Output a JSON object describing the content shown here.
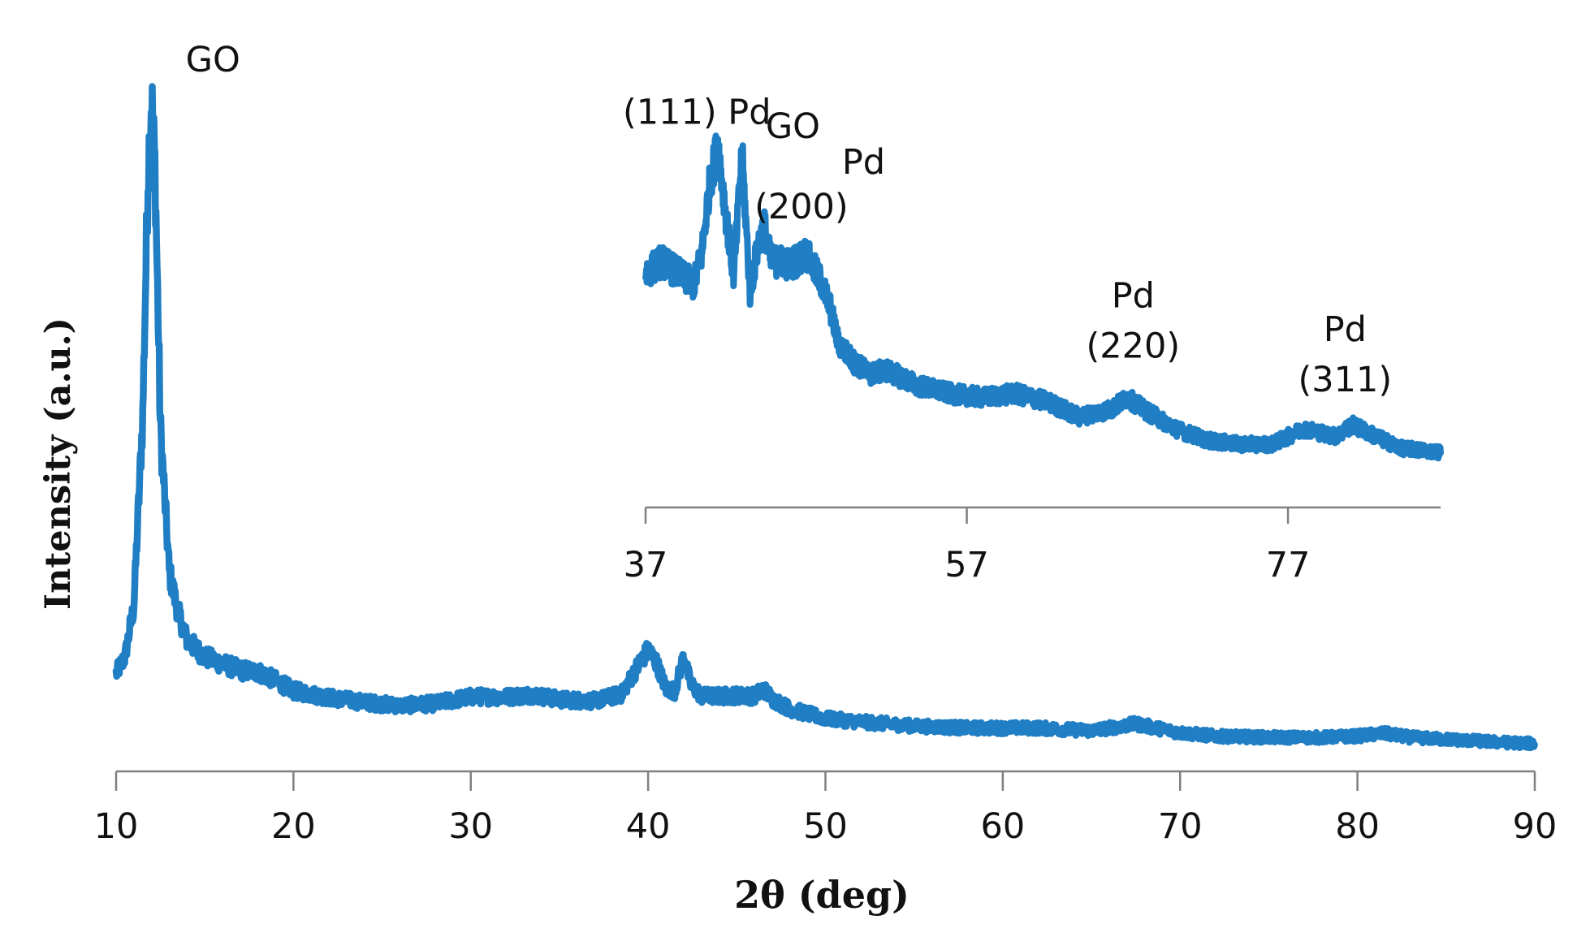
{
  "chart_data": [
    {
      "type": "line",
      "xlabel": "2θ (deg)",
      "ylabel": "Intensity (a.u.)",
      "xlim": [
        10,
        90
      ],
      "ylim": [
        0,
        100
      ],
      "xticks": [
        "10",
        "20",
        "30",
        "40",
        "50",
        "60",
        "70",
        "80",
        "90"
      ],
      "y_tick_labels": false,
      "grid": false,
      "legend": "none",
      "series": [
        {
          "color": "#1f7ec4",
          "x": [
            10,
            10.5,
            11,
            11.5,
            11.8,
            12,
            12.2,
            12.5,
            13,
            13.5,
            14,
            15,
            16,
            17,
            18,
            19,
            20,
            22,
            24,
            26,
            28,
            30,
            32,
            33.5,
            35,
            37,
            38.5,
            39.5,
            40,
            40.5,
            41,
            41.5,
            42,
            42.4,
            43,
            44,
            45,
            46,
            46.5,
            47,
            48,
            50,
            52,
            55,
            58,
            62,
            65,
            67.5,
            70,
            72,
            75,
            78,
            80,
            81.5,
            83,
            86,
            88,
            90
          ],
          "y": [
            12,
            14.5,
            22,
            50,
            86,
            97,
            86,
            48,
            27,
            21,
            17,
            14.5,
            13.5,
            12.5,
            12.3,
            11,
            9.5,
            8.5,
            7.8,
            7.3,
            7.6,
            8.6,
            8.6,
            8.9,
            8.2,
            8,
            9,
            13.5,
            15.5,
            13.5,
            9.8,
            9.5,
            14.5,
            10.5,
            8.7,
            8.7,
            8.8,
            8.7,
            9.8,
            8.3,
            6.8,
            5.4,
            4.9,
            4.3,
            4,
            4,
            3.6,
            4.6,
            3.3,
            2.8,
            2.6,
            2.6,
            2.8,
            3.2,
            2.6,
            2.2,
            1.9,
            1.7
          ]
        }
      ],
      "annotations": [
        {
          "text": "GO",
          "x": 12,
          "y": 97
        }
      ]
    },
    {
      "type": "line",
      "inset": true,
      "xlim": [
        37,
        86.5
      ],
      "ylim": [
        0,
        100
      ],
      "xticks": [
        "37",
        "57",
        "77"
      ],
      "y_tick_labels": false,
      "grid": false,
      "series": [
        {
          "color": "#1f7ec4",
          "x": [
            37,
            38,
            39,
            40,
            40.5,
            41,
            41.5,
            42,
            42.5,
            43,
            43.5,
            44,
            44.4,
            44.8,
            45.5,
            46,
            47,
            48,
            48.5,
            49,
            50,
            51,
            52,
            54,
            56,
            58,
            60,
            62,
            64,
            66,
            67,
            68,
            70,
            72,
            74,
            76,
            78,
            80,
            81,
            82,
            84,
            86.5
          ],
          "y": [
            55,
            58,
            55,
            52,
            60,
            78,
            88,
            70,
            54,
            86,
            50,
            62,
            67,
            58,
            58,
            57,
            60,
            52,
            46,
            37,
            32,
            29,
            30,
            26,
            24,
            23,
            24,
            22,
            18,
            20,
            23,
            20,
            15,
            12,
            11,
            11,
            15,
            13,
            16,
            14,
            10,
            9
          ]
        }
      ],
      "annotations": [
        {
          "text": "(111) Pd",
          "x": 40.3,
          "y": 88
        },
        {
          "text": "GO",
          "x": 42.3,
          "y": 86
        },
        {
          "text": "Pd",
          "x": 46.5,
          "y": 60
        },
        {
          "text": "(200)",
          "x": 46.5,
          "y": 60
        },
        {
          "text": "Pd",
          "x": 67,
          "y": 23
        },
        {
          "text": "(220)",
          "x": 67,
          "y": 23
        },
        {
          "text": "Pd",
          "x": 80.5,
          "y": 16
        },
        {
          "text": "(311)",
          "x": 80.5,
          "y": 16
        }
      ]
    }
  ]
}
